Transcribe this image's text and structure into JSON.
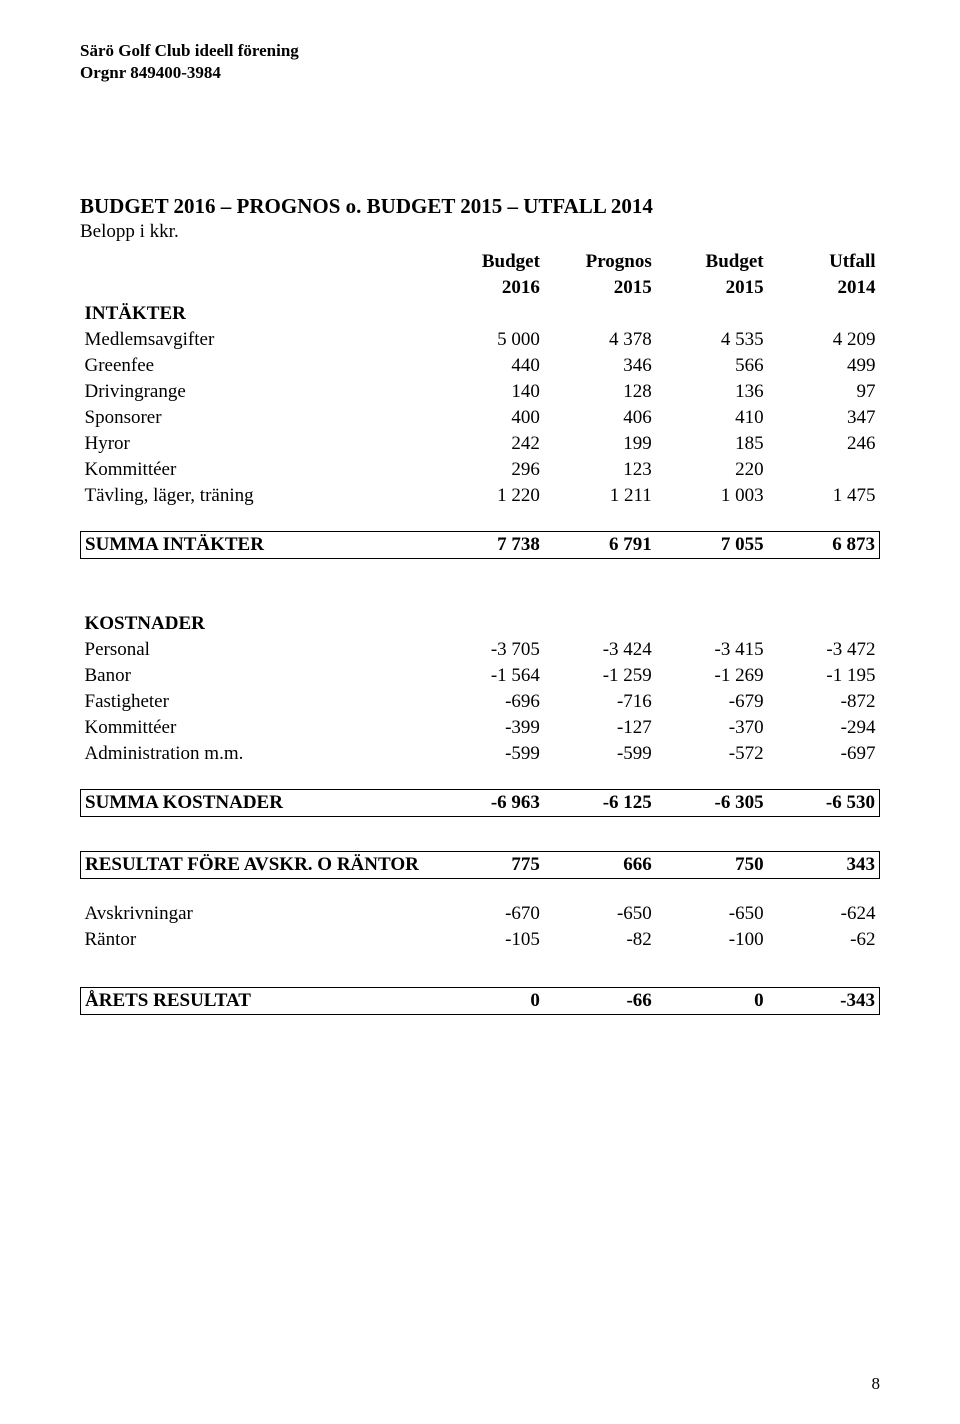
{
  "header": {
    "line1": "Särö Golf Club ideell förening",
    "line2": "Orgnr 849400-3984"
  },
  "title": "BUDGET 2016 – PROGNOS o. BUDGET 2015 – UTFALL 2014",
  "subtitle": "Belopp i kkr.",
  "col_headers": {
    "c1_top": "Budget",
    "c1_bot": "2016",
    "c2_top": "Prognos",
    "c2_bot": "2015",
    "c3_top": "Budget",
    "c3_bot": "2015",
    "c4_top": "Utfall",
    "c4_bot": "2014"
  },
  "intakter": {
    "heading": "INTÄKTER",
    "rows": [
      {
        "label": "Medlemsavgifter",
        "v": [
          "5 000",
          "4 378",
          "4 535",
          "4 209"
        ]
      },
      {
        "label": "Greenfee",
        "v": [
          "440",
          "346",
          "566",
          "499"
        ]
      },
      {
        "label": "Drivingrange",
        "v": [
          "140",
          "128",
          "136",
          "97"
        ]
      },
      {
        "label": "Sponsorer",
        "v": [
          "400",
          "406",
          "410",
          "347"
        ]
      },
      {
        "label": "Hyror",
        "v": [
          "242",
          "199",
          "185",
          "246"
        ]
      },
      {
        "label": "Kommittéer",
        "v": [
          "296",
          "123",
          "220",
          ""
        ]
      },
      {
        "label": "Tävling, läger, träning",
        "v": [
          "1 220",
          "1 211",
          "1 003",
          "1 475"
        ]
      }
    ],
    "sum": {
      "label": "SUMMA INTÄKTER",
      "v": [
        "7 738",
        "6 791",
        "7 055",
        "6 873"
      ]
    }
  },
  "kostnader": {
    "heading": "KOSTNADER",
    "rows": [
      {
        "label": "Personal",
        "v": [
          "-3 705",
          "-3 424",
          "-3 415",
          "-3 472"
        ]
      },
      {
        "label": "Banor",
        "v": [
          "-1 564",
          "-1 259",
          "-1 269",
          "-1 195"
        ]
      },
      {
        "label": "Fastigheter",
        "v": [
          "-696",
          "-716",
          "-679",
          "-872"
        ]
      },
      {
        "label": "Kommittéer",
        "v": [
          "-399",
          "-127",
          "-370",
          "-294"
        ]
      },
      {
        "label": "Administration m.m.",
        "v": [
          "-599",
          "-599",
          "-572",
          "-697"
        ]
      }
    ],
    "sum": {
      "label": "SUMMA KOSTNADER",
      "v": [
        "-6 963",
        "-6 125",
        "-6 305",
        "-6 530"
      ]
    }
  },
  "resultat_fore": {
    "label": "RESULTAT FÖRE AVSKR. O RÄNTOR",
    "v": [
      "775",
      "666",
      "750",
      "343"
    ]
  },
  "adjust": [
    {
      "label": "Avskrivningar",
      "v": [
        "-670",
        "-650",
        "-650",
        "-624"
      ]
    },
    {
      "label": "Räntor",
      "v": [
        "-105",
        "-82",
        "-100",
        "-62"
      ]
    }
  ],
  "arets": {
    "label": "ÅRETS RESULTAT",
    "v": [
      "0",
      "-66",
      "0",
      "-343"
    ]
  },
  "page_number": "8"
}
